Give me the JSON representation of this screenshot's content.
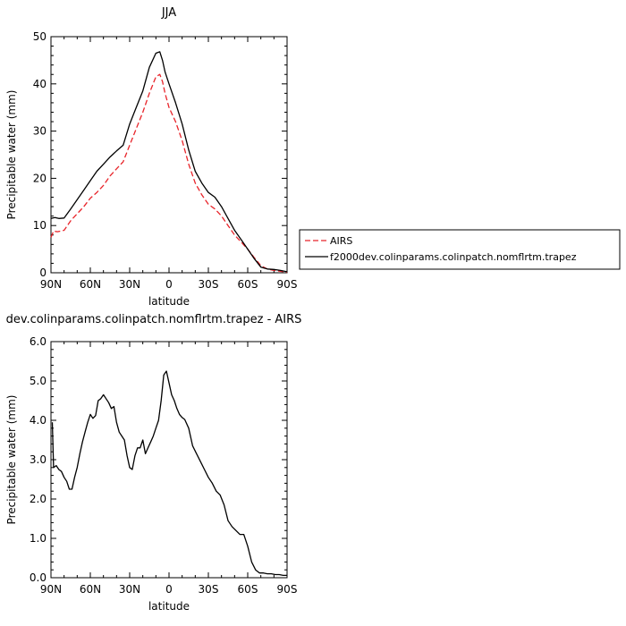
{
  "chart_data": [
    {
      "type": "line",
      "title": "JJA",
      "xlabel": "latitude",
      "ylabel": "Precipitable water (mm)",
      "xlim": [
        -90,
        90
      ],
      "ylim": [
        0,
        50
      ],
      "x_tick_labels": [
        "90N",
        "60N",
        "30N",
        "0",
        "30S",
        "60S",
        "90S"
      ],
      "y_tick_labels": [
        "0",
        "10",
        "20",
        "30",
        "40",
        "50"
      ],
      "y_ticks": [
        0,
        10,
        20,
        30,
        40,
        50
      ],
      "grid": false,
      "legend_position": "right",
      "series": [
        {
          "name": "AIRS",
          "color": "#e8242a",
          "dash": true,
          "x": [
            -90,
            -88,
            -85,
            -80,
            -75,
            -70,
            -65,
            -60,
            -55,
            -50,
            -45,
            -40,
            -35,
            -30,
            -25,
            -20,
            -15,
            -10,
            -7,
            -5,
            -3,
            0,
            5,
            10,
            15,
            20,
            25,
            30,
            35,
            40,
            45,
            50,
            55,
            60,
            65,
            70,
            75,
            80,
            85,
            90
          ],
          "values": [
            7.5,
            8.8,
            8.7,
            9.0,
            11.0,
            12.5,
            14.0,
            15.8,
            17.0,
            18.5,
            20.5,
            22.0,
            23.5,
            27.0,
            30.5,
            34.0,
            38.0,
            41.5,
            42.0,
            40.5,
            38.0,
            35.0,
            32.0,
            28.0,
            23.0,
            19.0,
            16.5,
            14.5,
            13.5,
            12.0,
            10.0,
            8.0,
            6.5,
            5.0,
            3.2,
            1.5,
            0.8,
            0.5,
            0.3,
            0.1
          ]
        },
        {
          "name": "f2000dev.colinparams.colinpatch.nomflrtm.trapez",
          "color": "#000000",
          "dash": false,
          "x": [
            -90,
            -87,
            -84,
            -80,
            -75,
            -70,
            -65,
            -60,
            -55,
            -50,
            -45,
            -40,
            -35,
            -30,
            -25,
            -20,
            -15,
            -10,
            -7,
            -5,
            -3,
            0,
            5,
            10,
            15,
            20,
            25,
            30,
            35,
            40,
            45,
            50,
            55,
            60,
            65,
            70,
            75,
            80,
            85,
            90
          ],
          "values": [
            11.5,
            11.7,
            11.5,
            11.6,
            13.5,
            15.5,
            17.5,
            19.5,
            21.5,
            23.0,
            24.5,
            25.8,
            27.0,
            31.5,
            35.0,
            38.5,
            43.5,
            46.5,
            46.8,
            45.0,
            42.5,
            40.0,
            36.0,
            31.5,
            26.0,
            21.5,
            19.0,
            17.0,
            16.0,
            14.0,
            11.5,
            9.0,
            7.0,
            5.0,
            3.0,
            1.2,
            0.8,
            0.7,
            0.5,
            0.2
          ]
        }
      ]
    },
    {
      "type": "line",
      "title": "dev.colinparams.colinpatch.nomflrtm.trapez - AIRS",
      "xlabel": "latitude",
      "ylabel": "Precipitable water (mm)",
      "xlim": [
        -90,
        90
      ],
      "ylim": [
        0,
        6
      ],
      "x_tick_labels": [
        "90N",
        "60N",
        "30N",
        "0",
        "30S",
        "60S",
        "90S"
      ],
      "y_tick_labels": [
        "0.0",
        "1.0",
        "2.0",
        "3.0",
        "4.0",
        "5.0",
        "6.0"
      ],
      "y_ticks": [
        0,
        1,
        2,
        3,
        4,
        5,
        6
      ],
      "grid": false,
      "series": [
        {
          "color": "#000000",
          "dash": false,
          "x": [
            -89,
            -88,
            -86,
            -84,
            -82,
            -80,
            -78,
            -76,
            -74,
            -72,
            -70,
            -68,
            -66,
            -64,
            -62,
            -60,
            -58,
            -56,
            -54,
            -52,
            -50,
            -48,
            -46,
            -44,
            -42,
            -40,
            -38,
            -36,
            -34,
            -32,
            -30,
            -28,
            -26,
            -24,
            -22,
            -20,
            -18,
            -16,
            -14,
            -12,
            -10,
            -8,
            -6,
            -4,
            -2,
            0,
            2,
            4,
            6,
            8,
            10,
            12,
            15,
            18,
            21,
            24,
            27,
            30,
            33,
            36,
            39,
            42,
            45,
            48,
            51,
            54,
            57,
            60,
            63,
            66,
            69,
            72,
            75,
            78,
            81,
            84,
            87,
            90
          ],
          "values": [
            3.95,
            2.8,
            2.85,
            2.75,
            2.7,
            2.55,
            2.45,
            2.25,
            2.25,
            2.55,
            2.8,
            3.15,
            3.45,
            3.7,
            3.95,
            4.15,
            4.05,
            4.12,
            4.5,
            4.55,
            4.65,
            4.55,
            4.45,
            4.3,
            4.35,
            3.95,
            3.7,
            3.6,
            3.5,
            3.1,
            2.8,
            2.75,
            3.1,
            3.3,
            3.3,
            3.5,
            3.15,
            3.3,
            3.45,
            3.6,
            3.8,
            4.0,
            4.5,
            5.15,
            5.25,
            4.95,
            4.65,
            4.5,
            4.3,
            4.15,
            4.07,
            4.02,
            3.8,
            3.35,
            3.15,
            2.95,
            2.75,
            2.55,
            2.4,
            2.2,
            2.1,
            1.85,
            1.45,
            1.3,
            1.2,
            1.1,
            1.1,
            0.8,
            0.4,
            0.2,
            0.12,
            0.12,
            0.1,
            0.1,
            0.08,
            0.08,
            0.06,
            0.06
          ]
        }
      ]
    }
  ]
}
